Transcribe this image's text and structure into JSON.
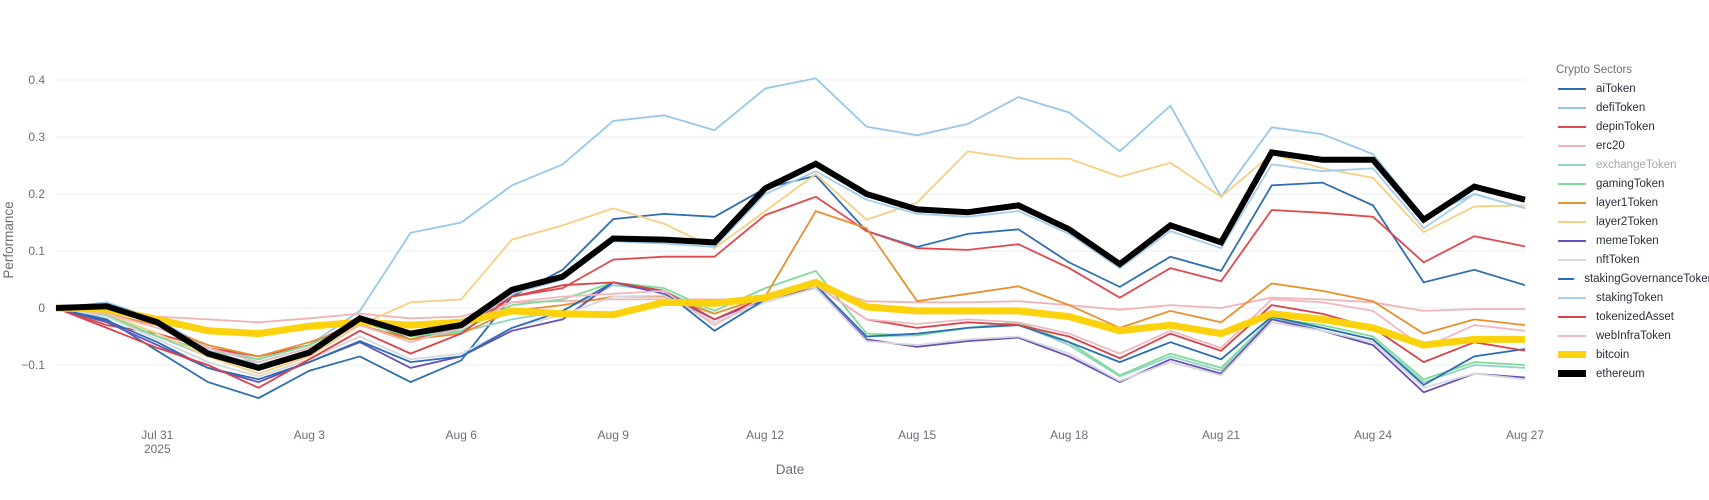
{
  "chart_data": {
    "type": "line",
    "title": "",
    "xlabel": "Date",
    "ylabel": "Performance",
    "ylim": [
      -0.19,
      0.45
    ],
    "yticks": [
      -0.1,
      0,
      0.1,
      0.2,
      0.3,
      0.4
    ],
    "ytick_labels": [
      "−0.1",
      "0",
      "0.1",
      "0.2",
      "0.3",
      "0.4"
    ],
    "x": [
      "2025-07-29",
      "2025-07-30",
      "2025-07-31",
      "2025-08-01",
      "2025-08-02",
      "2025-08-03",
      "2025-08-04",
      "2025-08-05",
      "2025-08-06",
      "2025-08-07",
      "2025-08-08",
      "2025-08-09",
      "2025-08-10",
      "2025-08-11",
      "2025-08-12",
      "2025-08-13",
      "2025-08-14",
      "2025-08-15",
      "2025-08-16",
      "2025-08-17",
      "2025-08-18",
      "2025-08-19",
      "2025-08-20",
      "2025-08-21",
      "2025-08-22",
      "2025-08-23",
      "2025-08-24",
      "2025-08-25",
      "2025-08-26",
      "2025-08-27"
    ],
    "xticks": [
      {
        "index": 2,
        "label": "Jul 31",
        "sublabel": "2025"
      },
      {
        "index": 5,
        "label": "Aug 3",
        "sublabel": ""
      },
      {
        "index": 8,
        "label": "Aug 6",
        "sublabel": ""
      },
      {
        "index": 11,
        "label": "Aug 9",
        "sublabel": ""
      },
      {
        "index": 14,
        "label": "Aug 12",
        "sublabel": ""
      },
      {
        "index": 17,
        "label": "Aug 15",
        "sublabel": ""
      },
      {
        "index": 20,
        "label": "Aug 18",
        "sublabel": ""
      },
      {
        "index": 23,
        "label": "Aug 21",
        "sublabel": ""
      },
      {
        "index": 26,
        "label": "Aug 24",
        "sublabel": ""
      },
      {
        "index": 29,
        "label": "Aug 27",
        "sublabel": ""
      }
    ],
    "grid": true,
    "legend": {
      "title": "Crypto Sectors",
      "placement": "right"
    },
    "series": [
      {
        "name": "aiToken",
        "color": "#2f6fb0",
        "weight": "thin",
        "values": [
          0,
          -0.02,
          -0.075,
          -0.13,
          -0.158,
          -0.11,
          -0.085,
          -0.13,
          -0.092,
          0.02,
          0.067,
          0.156,
          0.165,
          0.16,
          0.21,
          0.232,
          0.135,
          0.107,
          0.13,
          0.138,
          0.08,
          0.037,
          0.09,
          0.065,
          0.215,
          0.22,
          0.18,
          0.045,
          0.067,
          0.04
        ]
      },
      {
        "name": "defiToken",
        "color": "#97c8ea",
        "weight": "thin",
        "values": [
          0,
          0.01,
          -0.02,
          -0.07,
          -0.09,
          -0.065,
          -0.005,
          0.132,
          0.15,
          0.215,
          0.252,
          0.328,
          0.338,
          0.312,
          0.385,
          0.403,
          0.318,
          0.303,
          0.323,
          0.37,
          0.343,
          0.275,
          0.355,
          0.195,
          0.317,
          0.305,
          0.27,
          0.16,
          0.2,
          0.175
        ]
      },
      {
        "name": "depinToken",
        "color": "#e04a4f",
        "weight": "thin",
        "values": [
          0,
          -0.03,
          -0.045,
          -0.07,
          -0.085,
          -0.065,
          -0.02,
          -0.055,
          -0.035,
          0.02,
          0.035,
          0.085,
          0.09,
          0.09,
          0.163,
          0.195,
          0.135,
          0.105,
          0.102,
          0.112,
          0.07,
          0.018,
          0.07,
          0.047,
          0.172,
          0.167,
          0.16,
          0.08,
          0.126,
          0.108
        ]
      },
      {
        "name": "erc20",
        "color": "#f1b3b6",
        "weight": "thin",
        "values": [
          0,
          -0.005,
          -0.015,
          -0.02,
          -0.025,
          -0.018,
          -0.01,
          -0.018,
          -0.015,
          0.01,
          0.012,
          0.015,
          0.015,
          0.015,
          0.015,
          0.04,
          0.012,
          0.01,
          0.01,
          0.012,
          0.005,
          -0.003,
          0.005,
          0,
          0.018,
          0.015,
          0.01,
          -0.005,
          -0.002,
          -0.002
        ]
      },
      {
        "name": "exchangeToken",
        "color": "#8fd4c4",
        "weight": "thin",
        "muted": true,
        "values": [
          0,
          -0.015,
          -0.05,
          -0.085,
          -0.095,
          -0.07,
          -0.03,
          -0.055,
          -0.042,
          -0.02,
          -0.005,
          0.04,
          0.03,
          -0.01,
          0.02,
          0.04,
          -0.05,
          -0.048,
          -0.035,
          -0.028,
          -0.065,
          -0.12,
          -0.085,
          -0.11,
          -0.02,
          -0.035,
          -0.055,
          -0.13,
          -0.1,
          -0.105
        ]
      },
      {
        "name": "gamingToken",
        "color": "#7fdc98",
        "weight": "thin",
        "values": [
          0,
          -0.012,
          -0.05,
          -0.075,
          -0.09,
          -0.065,
          -0.025,
          -0.05,
          -0.04,
          0.005,
          0.015,
          0.045,
          0.035,
          -0.005,
          0.035,
          0.065,
          -0.045,
          -0.048,
          -0.035,
          -0.025,
          -0.06,
          -0.118,
          -0.08,
          -0.105,
          -0.018,
          -0.03,
          -0.05,
          -0.125,
          -0.095,
          -0.1
        ]
      },
      {
        "name": "layer1Token",
        "color": "#e8902e",
        "weight": "thin",
        "values": [
          0,
          -0.01,
          -0.03,
          -0.065,
          -0.085,
          -0.06,
          -0.03,
          -0.055,
          -0.045,
          -0.005,
          0.005,
          0.02,
          0.02,
          -0.01,
          0.02,
          0.17,
          0.14,
          0.012,
          0.025,
          0.038,
          0.005,
          -0.035,
          -0.005,
          -0.025,
          0.043,
          0.03,
          0.012,
          -0.045,
          -0.02,
          -0.03
        ]
      },
      {
        "name": "layer2Token",
        "color": "#f7cf82",
        "weight": "thin",
        "values": [
          0,
          -0.01,
          -0.045,
          -0.085,
          -0.115,
          -0.085,
          -0.03,
          0.01,
          0.015,
          0.12,
          0.145,
          0.175,
          0.148,
          0.105,
          0.17,
          0.235,
          0.155,
          0.185,
          0.275,
          0.262,
          0.262,
          0.23,
          0.255,
          0.195,
          0.27,
          0.245,
          0.228,
          0.133,
          0.178,
          0.18
        ]
      },
      {
        "name": "memeToken",
        "color": "#6a4fb8",
        "weight": "thin",
        "values": [
          0,
          -0.025,
          -0.065,
          -0.105,
          -0.13,
          -0.095,
          -0.06,
          -0.105,
          -0.085,
          -0.04,
          -0.02,
          0.045,
          0.025,
          -0.02,
          0.015,
          0.035,
          -0.055,
          -0.068,
          -0.058,
          -0.052,
          -0.085,
          -0.13,
          -0.09,
          -0.115,
          -0.02,
          -0.04,
          -0.065,
          -0.148,
          -0.115,
          -0.122
        ]
      },
      {
        "name": "nftToken",
        "color": "#d6d8de",
        "weight": "thin",
        "values": [
          0,
          -0.015,
          -0.055,
          -0.095,
          -0.12,
          -0.09,
          -0.05,
          -0.09,
          -0.08,
          -0.035,
          -0.012,
          0.02,
          0.022,
          -0.025,
          0.01,
          0.035,
          -0.058,
          -0.065,
          -0.055,
          -0.05,
          -0.08,
          -0.128,
          -0.095,
          -0.118,
          -0.025,
          -0.04,
          -0.06,
          -0.14,
          -0.115,
          -0.125
        ]
      },
      {
        "name": "stakingGovernanceToken",
        "color": "#2a6db5",
        "weight": "thin",
        "values": [
          0,
          -0.022,
          -0.06,
          -0.105,
          -0.125,
          -0.095,
          -0.058,
          -0.095,
          -0.085,
          -0.035,
          -0.005,
          0.045,
          0.03,
          -0.04,
          0.015,
          0.04,
          -0.05,
          -0.045,
          -0.035,
          -0.03,
          -0.06,
          -0.095,
          -0.06,
          -0.09,
          -0.015,
          -0.035,
          -0.055,
          -0.135,
          -0.085,
          -0.072
        ]
      },
      {
        "name": "stakingToken",
        "color": "#a6cdea",
        "weight": "thin",
        "values": [
          0,
          0.008,
          -0.025,
          -0.075,
          -0.1,
          -0.075,
          -0.02,
          -0.048,
          -0.035,
          0.025,
          0.05,
          0.117,
          0.113,
          0.107,
          0.2,
          0.24,
          0.19,
          0.165,
          0.16,
          0.17,
          0.13,
          0.07,
          0.135,
          0.105,
          0.252,
          0.24,
          0.245,
          0.14,
          0.2,
          0.175
        ]
      },
      {
        "name": "tokenizedAsset",
        "color": "#d9434a",
        "weight": "thin",
        "values": [
          0,
          -0.035,
          -0.07,
          -0.1,
          -0.14,
          -0.09,
          -0.04,
          -0.08,
          -0.045,
          0.02,
          0.04,
          0.045,
          0.03,
          -0.02,
          0.02,
          0.04,
          -0.02,
          -0.035,
          -0.025,
          -0.03,
          -0.05,
          -0.088,
          -0.045,
          -0.075,
          0.005,
          -0.01,
          -0.035,
          -0.095,
          -0.06,
          -0.075
        ]
      },
      {
        "name": "webInfraToken",
        "color": "#f0b9c0",
        "weight": "thin",
        "values": [
          0,
          -0.01,
          -0.035,
          -0.07,
          -0.095,
          -0.07,
          -0.03,
          -0.06,
          -0.035,
          0.01,
          0.02,
          0.025,
          0.03,
          -0.03,
          0.02,
          0.04,
          -0.02,
          -0.028,
          -0.02,
          -0.025,
          -0.045,
          -0.08,
          -0.04,
          -0.07,
          0.015,
          0.01,
          -0.005,
          -0.07,
          -0.03,
          -0.04
        ]
      },
      {
        "name": "bitcoin",
        "color": "#fbd20c",
        "weight": "thick",
        "values": [
          0,
          -0.002,
          -0.02,
          -0.04,
          -0.045,
          -0.032,
          -0.025,
          -0.03,
          -0.025,
          -0.005,
          -0.01,
          -0.012,
          0.01,
          0.008,
          0.018,
          0.045,
          0.002,
          -0.005,
          -0.005,
          -0.005,
          -0.015,
          -0.04,
          -0.03,
          -0.045,
          -0.01,
          -0.02,
          -0.035,
          -0.065,
          -0.055,
          -0.055
        ]
      },
      {
        "name": "ethereum",
        "color": "#000000",
        "weight": "thick",
        "values": [
          0,
          0.003,
          -0.025,
          -0.08,
          -0.105,
          -0.078,
          -0.018,
          -0.045,
          -0.03,
          0.032,
          0.055,
          0.122,
          0.12,
          0.115,
          0.21,
          0.253,
          0.2,
          0.173,
          0.168,
          0.18,
          0.138,
          0.077,
          0.145,
          0.115,
          0.273,
          0.26,
          0.26,
          0.155,
          0.213,
          0.19
        ]
      }
    ]
  }
}
